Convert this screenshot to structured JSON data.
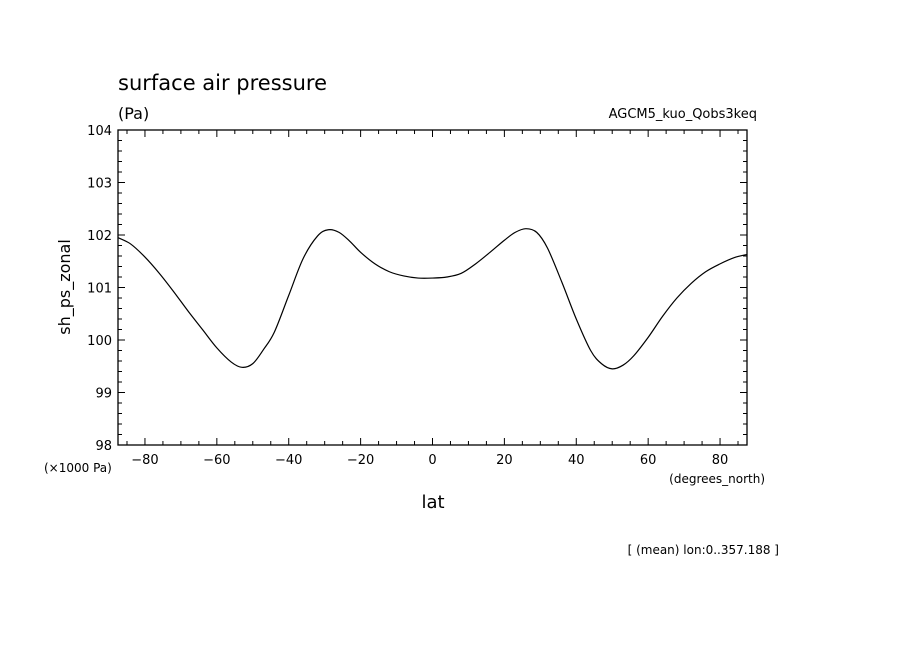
{
  "chart_data": {
    "type": "line",
    "title": "surface air pressure",
    "units": "(Pa)",
    "experiment": "AGCM5_kuo_Qobs3keq",
    "ylabel": "sh_ps_zonal",
    "xlabel": "lat",
    "y_scale_note": "(×1000 Pa)",
    "x_unit_note": "(degrees_north)",
    "footnote": "[ (mean) lon:0..357.188 ]",
    "xlim": [
      -87.5,
      87.5
    ],
    "ylim": [
      98,
      104
    ],
    "x_ticks": [
      -80,
      -60,
      -40,
      -20,
      0,
      20,
      40,
      60,
      80
    ],
    "y_ticks": [
      98,
      99,
      100,
      101,
      102,
      103,
      104
    ],
    "series": [
      {
        "x": [
          -87.5,
          -84,
          -80,
          -76,
          -72,
          -68,
          -64,
          -60,
          -56,
          -53,
          -50,
          -47,
          -44,
          -40,
          -36,
          -32,
          -29,
          -26,
          -23,
          -20,
          -16,
          -12,
          -8,
          -4,
          0,
          4,
          8,
          12,
          16,
          20,
          23,
          26,
          29,
          32,
          36,
          40,
          44,
          47,
          50,
          53,
          56,
          60,
          64,
          68,
          72,
          76,
          80,
          84,
          87.5
        ],
        "y": [
          101.95,
          101.83,
          101.58,
          101.27,
          100.92,
          100.55,
          100.2,
          99.85,
          99.58,
          99.48,
          99.55,
          99.82,
          100.15,
          100.85,
          101.55,
          101.98,
          102.1,
          102.05,
          101.88,
          101.67,
          101.45,
          101.3,
          101.22,
          101.18,
          101.18,
          101.2,
          101.27,
          101.45,
          101.67,
          101.9,
          102.05,
          102.12,
          102.05,
          101.75,
          101.1,
          100.4,
          99.8,
          99.55,
          99.45,
          99.52,
          99.7,
          100.05,
          100.45,
          100.8,
          101.08,
          101.3,
          101.45,
          101.57,
          101.63
        ]
      }
    ]
  }
}
